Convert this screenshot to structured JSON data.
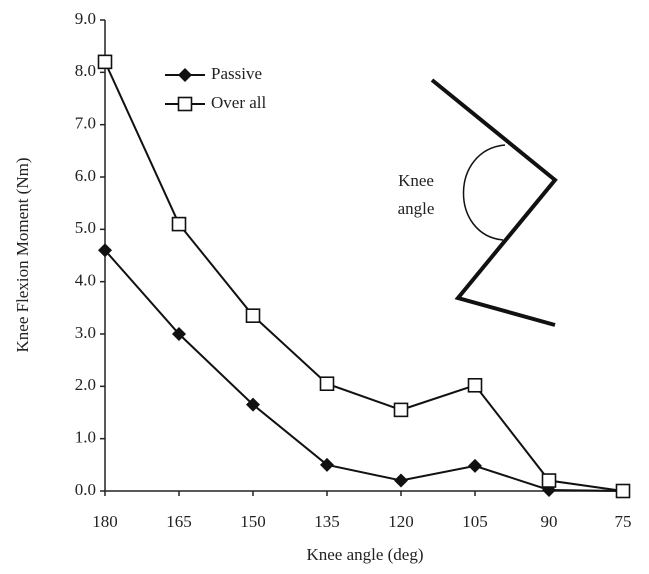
{
  "chart_data": {
    "type": "line",
    "x_label": "Knee angle (deg)",
    "y_label": "Knee Flexion Moment (Nm)",
    "x": [
      180,
      165,
      150,
      135,
      120,
      105,
      90,
      75
    ],
    "xlim": [
      180,
      75
    ],
    "xticks": [
      180,
      165,
      150,
      135,
      120,
      105,
      90,
      75
    ],
    "ylim": [
      0,
      9
    ],
    "yticks": [
      {
        "value": 0,
        "label": "0.0"
      },
      {
        "value": 1,
        "label": "1.0"
      },
      {
        "value": 2,
        "label": "2.0"
      },
      {
        "value": 3,
        "label": "3.0"
      },
      {
        "value": 4,
        "label": "4.0"
      },
      {
        "value": 5,
        "label": "5.0"
      },
      {
        "value": 6,
        "label": "6.0"
      },
      {
        "value": 7,
        "label": "7.0"
      },
      {
        "value": 8,
        "label": "8.0"
      },
      {
        "value": 9,
        "label": "9.0"
      }
    ],
    "grid": false,
    "legend": "upper left",
    "series": [
      {
        "name": "Passive",
        "color": "#111111",
        "marker": "diamond",
        "values": [
          4.6,
          3.0,
          1.65,
          0.5,
          0.2,
          0.48,
          0.02,
          0.0
        ]
      },
      {
        "name": "Over all",
        "color": "#111111",
        "marker": "open-square",
        "values": [
          8.2,
          5.1,
          3.35,
          2.05,
          1.55,
          2.02,
          0.2,
          0.0
        ]
      }
    ],
    "annotations": [
      "Knee",
      "angle"
    ]
  }
}
